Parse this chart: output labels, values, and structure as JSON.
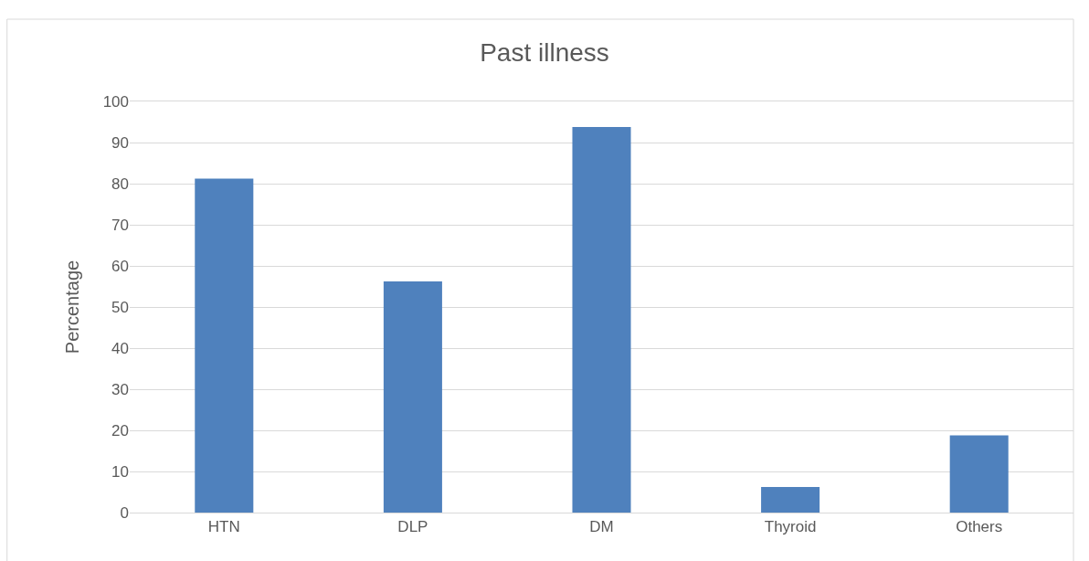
{
  "chart_data": {
    "type": "bar",
    "title": "Past illness",
    "ylabel": "Percentage",
    "categories": [
      "HTN",
      "DLP",
      "DM",
      "Thyroid",
      "Others"
    ],
    "values": [
      81.2,
      56.2,
      93.8,
      6.2,
      18.8
    ],
    "color": "#4f81bd",
    "ylim": [
      0,
      100
    ],
    "yticks": [
      0,
      10,
      20,
      30,
      40,
      50,
      60,
      70,
      80,
      90,
      100
    ],
    "grid": "y"
  }
}
